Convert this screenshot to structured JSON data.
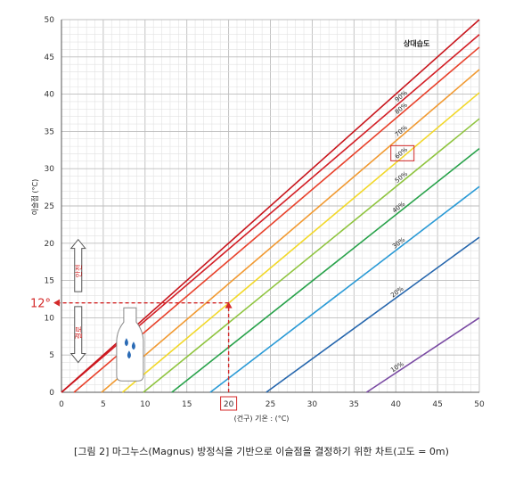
{
  "chart_data": {
    "type": "line",
    "title": "",
    "xlabel": "(건구) 기온 : (°C)",
    "ylabel": "이슬점 (°C)",
    "xlim": [
      0,
      50
    ],
    "ylim": [
      0,
      50
    ],
    "x_ticks": [
      0,
      5,
      10,
      15,
      20,
      25,
      30,
      35,
      40,
      45,
      50
    ],
    "y_ticks": [
      0,
      5,
      10,
      15,
      20,
      25,
      30,
      35,
      40,
      45,
      50
    ],
    "grid": true,
    "legend_title": "상대습도",
    "series": [
      {
        "name": "90%",
        "x": [
          0,
          50
        ],
        "y": [
          0,
          48
        ]
      },
      {
        "name": "80%",
        "x": [
          1.5,
          50
        ],
        "y": [
          0,
          46.3
        ]
      },
      {
        "name": "70%",
        "x": [
          4.8,
          50
        ],
        "y": [
          0,
          43.3
        ]
      },
      {
        "name": "60%",
        "x": [
          7.3,
          50
        ],
        "y": [
          0,
          40.2
        ]
      },
      {
        "name": "50%",
        "x": [
          9.8,
          50
        ],
        "y": [
          0,
          36.7
        ]
      },
      {
        "name": "40%",
        "x": [
          13.2,
          50
        ],
        "y": [
          0,
          32.7
        ]
      },
      {
        "name": "30%",
        "x": [
          17.8,
          50
        ],
        "y": [
          0,
          27.6
        ]
      },
      {
        "name": "20%",
        "x": [
          24.5,
          50
        ],
        "y": [
          0,
          20.8
        ]
      },
      {
        "name": "10%",
        "x": [
          36.5,
          50
        ],
        "y": [
          0,
          10
        ]
      }
    ],
    "series_colors": [
      "#d31f26",
      "#e8412b",
      "#f19a32",
      "#f2d829",
      "#8fc43f",
      "#28a24a",
      "#2a9ad6",
      "#2566ad",
      "#7a4aa3",
      "#2b2b4a"
    ],
    "annotations": {
      "highlight_x": 20,
      "highlight_y": 12,
      "highlight_y_label": "12°",
      "up_arrow_label": "안전",
      "down_arrow_label": "결로",
      "highlight_box_series": "60%"
    }
  },
  "caption": "[그림 2] 마그누스(Magnus) 방정식을 기반으로 이슬점을 결정하기 위한 차트(고도 = 0m)",
  "icons": {
    "bottle": "bottle-with-drops-icon"
  }
}
